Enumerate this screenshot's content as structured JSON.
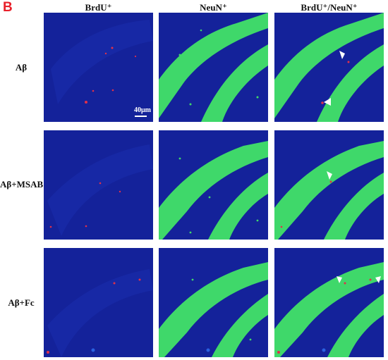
{
  "figure": {
    "panel_letter": "B",
    "columns": [
      "BrdU⁺",
      "NeuN⁺",
      "BrdU⁺/NeuN⁺"
    ],
    "rows": [
      "Aβ",
      "Aβ+MSAB",
      "Aβ+Fc"
    ],
    "scale_label": "40μm"
  },
  "colors": {
    "panel_letter": "#e8202a",
    "background_channel": "#1a2ba8",
    "neun_channel": "#3fd86a",
    "brdu_channel": "#e0304a",
    "arrowhead": "#ffffff"
  },
  "icons": {
    "arrowhead": "arrowhead-icon"
  }
}
